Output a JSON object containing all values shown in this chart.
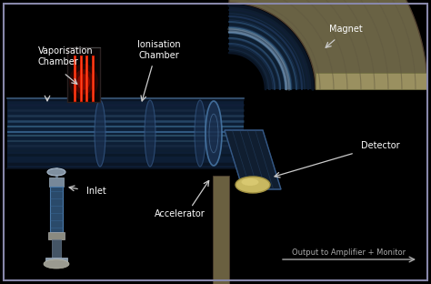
{
  "bg_color": "#000000",
  "border_color": "#8888aa",
  "labels": {
    "vaporisation_chamber": "Vaporisation\nChamber",
    "ionisation_chamber": "Ionisation\nChamber",
    "inlet": "Inlet",
    "accelerator": "Accelerator",
    "magnet": "Magnet",
    "detector": "Detector",
    "output": "Output to Amplifier + Monitor"
  },
  "label_color": "#ffffff",
  "arrow_color": "#cccccc",
  "tube_dark": "#0d1e35",
  "tube_mid": "#1a3a60",
  "tube_light": "#2a5888",
  "tube_highlight": "#4a80b0",
  "magnet_face": "#7a7050",
  "magnet_dark": "#504030",
  "magnet_light": "#9a9060",
  "magnet_side": "#404030",
  "red_bright": "#ff3300",
  "red_mid": "#cc2200",
  "detector_gold": "#c8b860",
  "beam_glow": "#8ab0d0"
}
